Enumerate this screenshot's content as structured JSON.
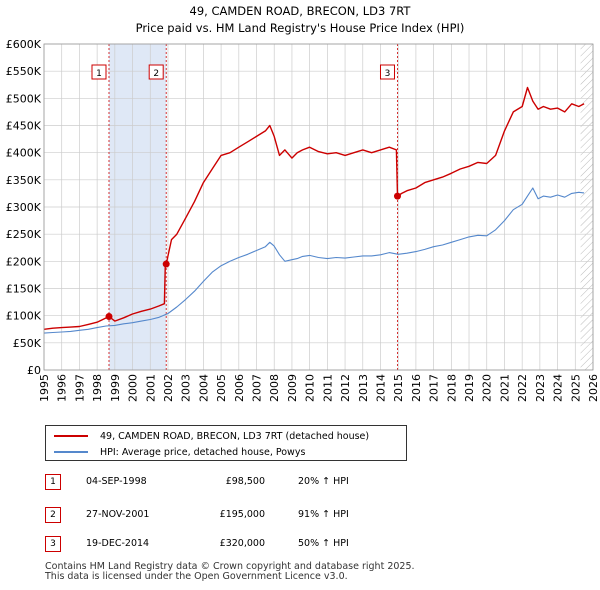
{
  "chart_data": {
    "type": "line",
    "title": "49, CAMDEN ROAD, BRECON, LD3 7RT",
    "subtitle": "Price paid vs. HM Land Registry's House Price Index (HPI)",
    "xlim": [
      1995,
      2026
    ],
    "ylim": [
      0,
      600000
    ],
    "x_ticks": [
      "1995",
      "1996",
      "1997",
      "1998",
      "1999",
      "2000",
      "2001",
      "2002",
      "2003",
      "2004",
      "2005",
      "2006",
      "2007",
      "2008",
      "2009",
      "2010",
      "2011",
      "2012",
      "2013",
      "2014",
      "2015",
      "2016",
      "2017",
      "2018",
      "2019",
      "2020",
      "2021",
      "2022",
      "2023",
      "2024",
      "2025",
      "2026"
    ],
    "y_ticks": [
      {
        "value": 0,
        "label": "£0"
      },
      {
        "value": 50000,
        "label": "£50K"
      },
      {
        "value": 100000,
        "label": "£100K"
      },
      {
        "value": 150000,
        "label": "£150K"
      },
      {
        "value": 200000,
        "label": "£200K"
      },
      {
        "value": 250000,
        "label": "£250K"
      },
      {
        "value": 300000,
        "label": "£300K"
      },
      {
        "value": 350000,
        "label": "£350K"
      },
      {
        "value": 400000,
        "label": "£400K"
      },
      {
        "value": 450000,
        "label": "£450K"
      },
      {
        "value": 500000,
        "label": "£500K"
      },
      {
        "value": 550000,
        "label": "£550K"
      },
      {
        "value": 600000,
        "label": "£600K"
      }
    ],
    "shaded_periods": [
      [
        1998.67,
        2001.9
      ]
    ],
    "hatched_from": 2025.3,
    "series": [
      {
        "name": "49, CAMDEN ROAD, BRECON, LD3 7RT (detached house)",
        "color": "#cc0000",
        "x": [
          1995.0,
          1995.5,
          1996.0,
          1996.5,
          1997.0,
          1997.5,
          1998.0,
          1998.67,
          1999.0,
          1999.5,
          2000.0,
          2000.5,
          2001.0,
          2001.5,
          2001.8,
          2001.85,
          2001.9,
          2002.2,
          2002.5,
          2003.0,
          2003.5,
          2004.0,
          2004.5,
          2005.0,
          2005.5,
          2006.0,
          2006.5,
          2007.0,
          2007.5,
          2007.75,
          2008.0,
          2008.3,
          2008.6,
          2009.0,
          2009.3,
          2009.6,
          2010.0,
          2010.5,
          2011.0,
          2011.5,
          2012.0,
          2012.5,
          2013.0,
          2013.5,
          2014.0,
          2014.5,
          2014.9,
          2014.96,
          2015.2,
          2015.5,
          2016.0,
          2016.5,
          2017.0,
          2017.5,
          2018.0,
          2018.5,
          2019.0,
          2019.5,
          2020.0,
          2020.5,
          2021.0,
          2021.5,
          2022.0,
          2022.3,
          2022.6,
          2022.9,
          2023.2,
          2023.6,
          2024.0,
          2024.4,
          2024.8,
          2025.2,
          2025.5
        ],
        "y": [
          75000,
          77000,
          78000,
          79000,
          80000,
          84000,
          88000,
          98500,
          90000,
          96000,
          103000,
          108000,
          112000,
          118000,
          122000,
          195000,
          195000,
          240000,
          250000,
          280000,
          310000,
          345000,
          370000,
          395000,
          400000,
          410000,
          420000,
          430000,
          440000,
          450000,
          430000,
          395000,
          405000,
          390000,
          400000,
          405000,
          410000,
          402000,
          398000,
          400000,
          395000,
          400000,
          405000,
          400000,
          405000,
          410000,
          405000,
          320000,
          325000,
          330000,
          335000,
          345000,
          350000,
          355000,
          362000,
          370000,
          375000,
          382000,
          380000,
          395000,
          440000,
          475000,
          485000,
          520000,
          495000,
          480000,
          485000,
          480000,
          482000,
          475000,
          490000,
          485000,
          490000
        ]
      },
      {
        "name": "HPI: Average price, detached house, Powys",
        "color": "#5588cc",
        "x": [
          1995.0,
          1995.5,
          1996.0,
          1996.5,
          1997.0,
          1997.5,
          1998.0,
          1998.5,
          1999.0,
          1999.5,
          2000.0,
          2000.5,
          2001.0,
          2001.5,
          2002.0,
          2002.5,
          2003.0,
          2003.5,
          2004.0,
          2004.5,
          2005.0,
          2005.5,
          2006.0,
          2006.5,
          2007.0,
          2007.5,
          2007.75,
          2008.0,
          2008.3,
          2008.6,
          2009.0,
          2009.3,
          2009.6,
          2010.0,
          2010.5,
          2011.0,
          2011.5,
          2012.0,
          2012.5,
          2013.0,
          2013.5,
          2014.0,
          2014.5,
          2015.0,
          2015.5,
          2016.0,
          2016.5,
          2017.0,
          2017.5,
          2018.0,
          2018.5,
          2019.0,
          2019.5,
          2020.0,
          2020.5,
          2021.0,
          2021.5,
          2022.0,
          2022.3,
          2022.6,
          2022.9,
          2023.2,
          2023.6,
          2024.0,
          2024.4,
          2024.8,
          2025.2,
          2025.5
        ],
        "y": [
          68000,
          69000,
          70000,
          71000,
          73000,
          75000,
          78000,
          81000,
          82000,
          85000,
          87000,
          90000,
          93000,
          97000,
          104000,
          116000,
          130000,
          145000,
          163000,
          180000,
          192000,
          200000,
          207000,
          213000,
          220000,
          227000,
          235000,
          228000,
          212000,
          200000,
          203000,
          205000,
          209000,
          211000,
          207000,
          205000,
          207000,
          206000,
          208000,
          210000,
          210000,
          212000,
          216000,
          213000,
          215000,
          218000,
          222000,
          227000,
          230000,
          235000,
          240000,
          245000,
          248000,
          247000,
          258000,
          275000,
          295000,
          305000,
          320000,
          335000,
          315000,
          320000,
          318000,
          322000,
          318000,
          325000,
          327000,
          326000
        ]
      }
    ],
    "markers": [
      {
        "label": "1",
        "x": 1998.67,
        "y": 98500
      },
      {
        "label": "2",
        "x": 2001.9,
        "y": 195000
      },
      {
        "label": "3",
        "x": 2014.96,
        "y": 320000
      }
    ]
  },
  "legend": {
    "house_label": "49, CAMDEN ROAD, BRECON, LD3 7RT (detached house)",
    "hpi_label": "HPI: Average price, detached house, Powys"
  },
  "transactions": [
    {
      "num": "1",
      "date": "04-SEP-1998",
      "price": "£98,500",
      "hpi": "20% ↑ HPI"
    },
    {
      "num": "2",
      "date": "27-NOV-2001",
      "price": "£195,000",
      "hpi": "91% ↑ HPI"
    },
    {
      "num": "3",
      "date": "19-DEC-2014",
      "price": "£320,000",
      "hpi": "50% ↑ HPI"
    }
  ],
  "footer": {
    "line1": "Contains HM Land Registry data © Crown copyright and database right 2025.",
    "line2": "This data is licensed under the Open Government Licence v3.0."
  },
  "colors": {
    "house": "#cc0000",
    "hpi": "#5588cc",
    "shade": "#dfe8f6",
    "grid": "#cccccc"
  }
}
